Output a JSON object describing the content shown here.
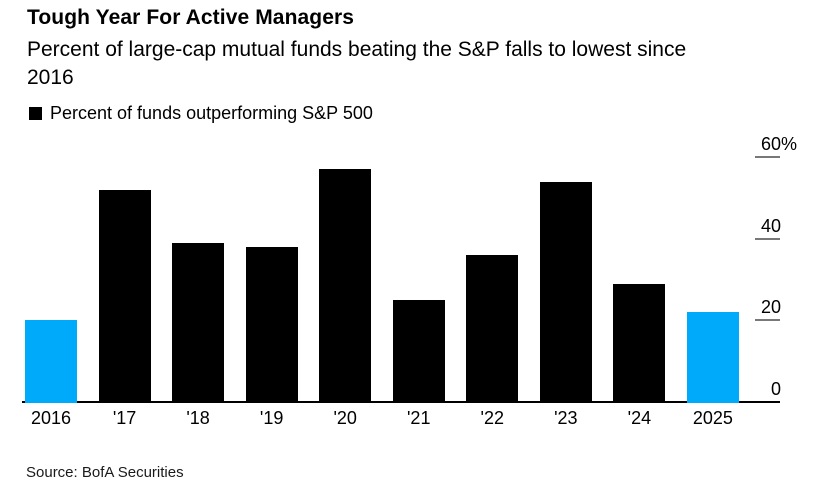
{
  "header": {
    "title": "Tough Year For Active Managers",
    "subtitle": "Percent of large-cap mutual funds beating the S&P falls to lowest since 2016"
  },
  "legend": {
    "label": "Percent of funds outperforming S&P 500",
    "swatch_color": "#000000"
  },
  "source": "Source: BofA Securities",
  "colors": {
    "bar_default": "#000000",
    "bar_highlight": "#00aafa",
    "tick_mark": "#787878",
    "axis_line": "#000000",
    "text": "#000000"
  },
  "chart_data": {
    "type": "bar",
    "title": "Tough Year For Active Managers",
    "subtitle": "Percent of large-cap mutual funds beating the S&P falls to lowest since 2016",
    "series_name": "Percent of funds outperforming S&P 500",
    "categories": [
      "2016",
      "'17",
      "'18",
      "'19",
      "'20",
      "'21",
      "'22",
      "'23",
      "'24",
      "2025"
    ],
    "values": [
      20,
      52,
      39,
      38,
      57,
      25,
      36,
      54,
      29,
      22
    ],
    "highlighted_categories": [
      "2016",
      "2025"
    ],
    "xlabel": "",
    "ylabel": "",
    "ylim": [
      0,
      60
    ],
    "yticks": [
      {
        "value": 60,
        "label": "60%"
      },
      {
        "value": 40,
        "label": "40"
      },
      {
        "value": 20,
        "label": "20"
      },
      {
        "value": 0,
        "label": "0"
      }
    ],
    "grid": false,
    "axis_side": "right",
    "legend_position": "top-left"
  }
}
